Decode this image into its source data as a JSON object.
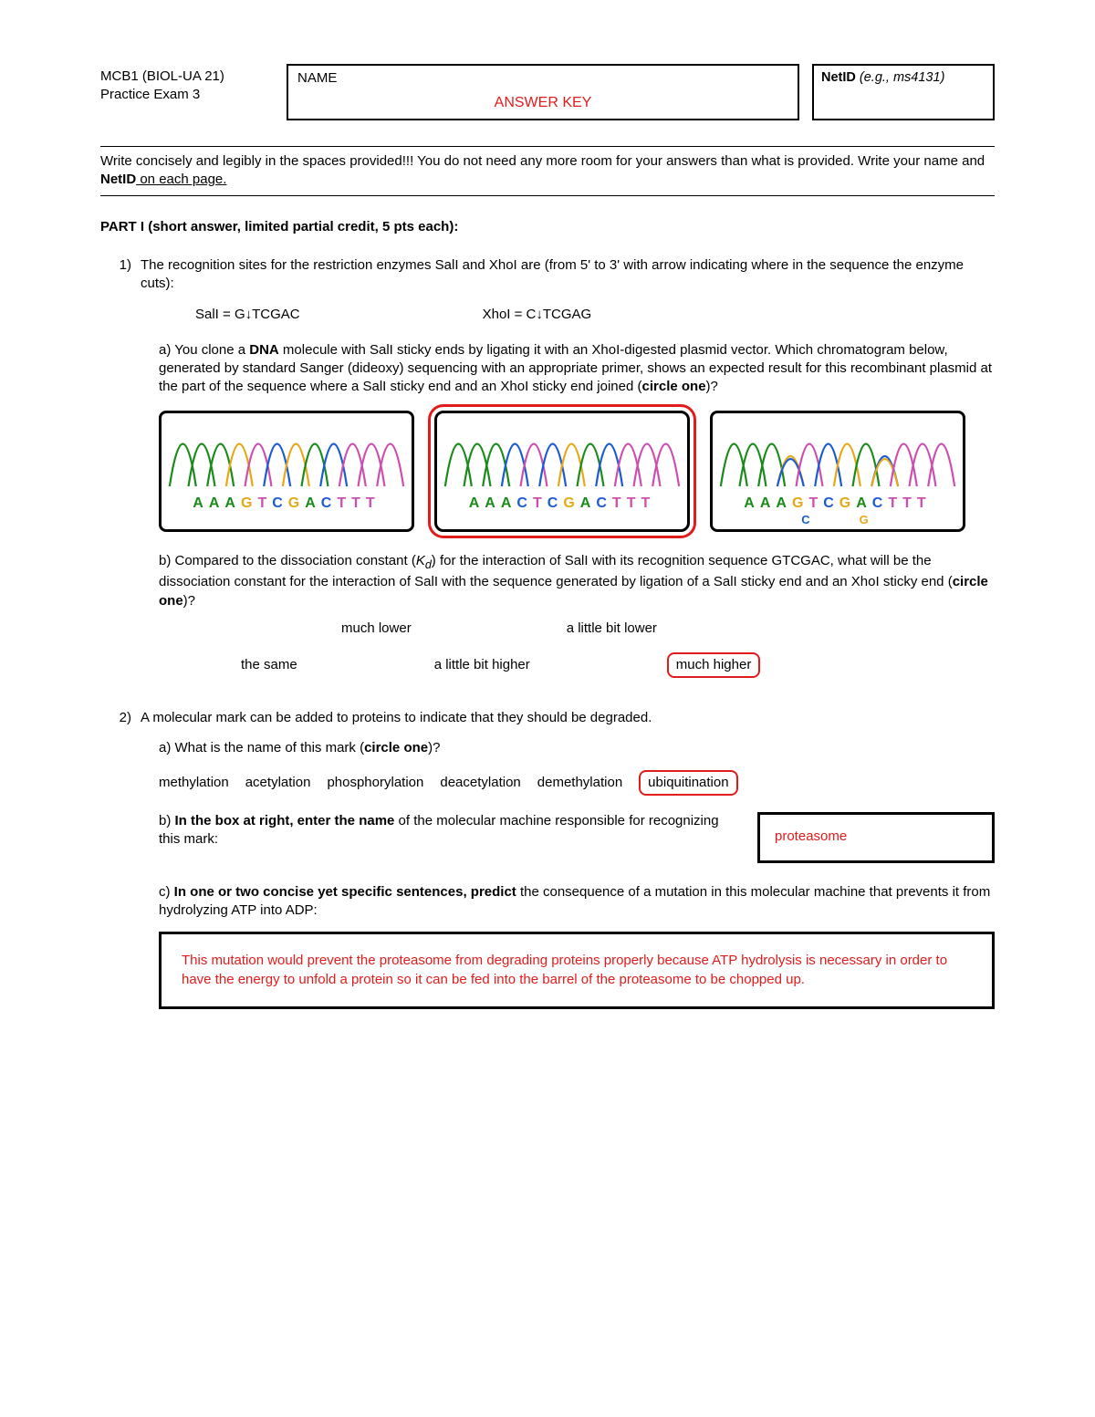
{
  "header": {
    "course": "MCB1 (BIOL-UA 21)",
    "subtitle": "Practice Exam 3",
    "name_label": "NAME",
    "answer_key": "ANSWER KEY",
    "netid_label": "NetID",
    "netid_eg": "(e.g., ms4131)"
  },
  "instructions": {
    "l1": "Write concisely and legibly in the spaces provided!!! You do not need any more room for your answers than what is provided. Write your name and ",
    "netid": "NetID",
    "l2": " on each page."
  },
  "part1_title": "PART I (short answer, limited partial credit, 5 pts each):",
  "q1": {
    "num": "1)",
    "stem": "The recognition sites for the restriction enzymes SalI and XhoI are (from 5' to 3' with arrow indicating where in the sequence the enzyme cuts):",
    "sal": "SalI = G↓TCGAC",
    "xho": "XhoI = C↓TCGAG",
    "a_pre": "a) You clone a ",
    "a_dna": "DNA",
    "a_txt": " molecule with SalI sticky ends by ligating it with an XhoI-digested plasmid vector. Which chromatogram below, generated by standard Sanger (dideoxy) sequencing with an appropriate primer, shows an expected result for this recombinant plasmid at the part of the sequence where a SalI sticky end and an XhoI sticky end joined (",
    "circle_one": "circle one",
    "a_end": ")?",
    "chrom1_seq": "AAAGTCGACTTT",
    "chrom2_seq": "AAACTCGACTTT",
    "chrom3_seq": "AAAGTCGACTTT",
    "chrom3_sub_c": "C",
    "chrom3_sub_g": "G",
    "b_pre": "b) Compared to the dissociation constant (",
    "kd": "K",
    "kd_sub": "d",
    "b_txt": ") for the interaction of SalI with its recognition sequence GTCGAC, what will be the dissociation constant for the interaction of SalI with the sequence generated by ligation of a SalI sticky end and an XhoI sticky end (",
    "b_end": ")?",
    "opts": {
      "o1": "much lower",
      "o2": "a little bit lower",
      "o3": "the same",
      "o4": "a little bit higher",
      "o5": "much higher"
    }
  },
  "q2": {
    "num": "2)",
    "stem": "A molecular mark can be added to proteins to indicate that they should be degraded.",
    "a_txt": "a) What is the name of this mark (",
    "a_end": ")?",
    "opts": {
      "o1": "methylation",
      "o2": "acetylation",
      "o3": "phosphorylation",
      "o4": "deacetylation",
      "o5": "demethylation",
      "o6": "ubiquitination"
    },
    "b_lead": "b) ",
    "b_bold": "In the box at right, enter the name",
    "b_txt": " of the molecular machine responsible for recognizing this mark:",
    "b_ans": "proteasome",
    "c_lead": "c) ",
    "c_bold": "In one or two concise yet specific sentences, predict",
    "c_txt": " the consequence of a mutation in this molecular machine that prevents it from hydrolyzing ATP into ADP:",
    "c_ans": "This mutation would prevent the proteasome from degrading proteins properly because ATP hydrolysis is necessary in order to have the energy to unfold a protein so it can be fed into the barrel of the proteasome to be chopped up."
  },
  "colors": {
    "A": "#1a8a1a",
    "T": "#cc4fb0",
    "G": "#e6a817",
    "C": "#1a5bd4",
    "red": "#e21b1b",
    "black": "#000000"
  }
}
